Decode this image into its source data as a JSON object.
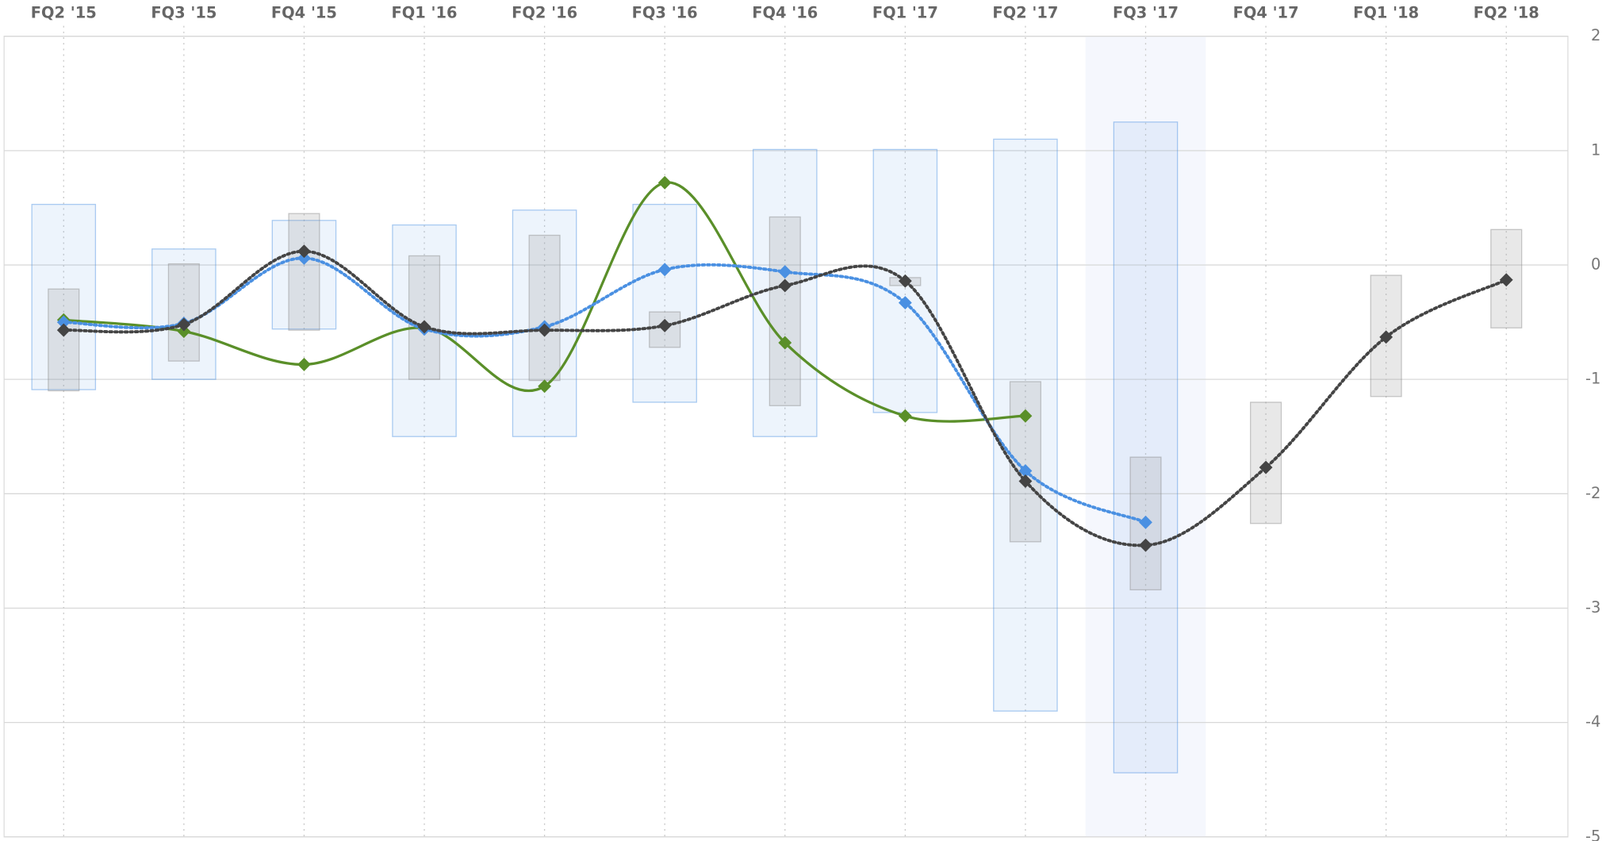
{
  "chart_data": {
    "type": "line",
    "categories": [
      "FQ2 '15",
      "FQ3 '15",
      "FQ4 '15",
      "FQ1 '16",
      "FQ2 '16",
      "FQ3 '16",
      "FQ4 '16",
      "FQ1 '17",
      "FQ2 '17",
      "FQ3 '17",
      "FQ4 '17",
      "FQ1 '18",
      "FQ2 '18"
    ],
    "ylim": [
      -5,
      2
    ],
    "yticks": [
      2,
      1,
      0,
      -1,
      -2,
      -3,
      -4,
      -5
    ],
    "grid": true,
    "highlight_category": 9,
    "ranges": [
      {
        "color": "#4a90e2",
        "high": [
          0.53,
          0.14,
          0.39,
          0.35,
          0.48,
          0.53,
          1.01,
          1.01,
          1.1,
          1.25,
          null,
          null,
          null
        ],
        "low": [
          -1.09,
          -1.0,
          -0.56,
          -1.5,
          -1.5,
          -1.2,
          -1.5,
          -1.29,
          -3.9,
          -4.44,
          null,
          null,
          null
        ]
      },
      {
        "color": "#8a8a8a",
        "high": [
          -0.21,
          0.01,
          0.45,
          0.08,
          0.26,
          -0.41,
          0.42,
          -0.11,
          -1.02,
          -1.68,
          -1.2,
          -0.09,
          0.31
        ],
        "low": [
          -1.1,
          -0.84,
          -0.57,
          -1.0,
          -1.01,
          -0.72,
          -1.23,
          -0.18,
          -2.42,
          -2.84,
          -2.26,
          -1.15,
          -0.55
        ]
      }
    ],
    "series": [
      {
        "color": "#5a8f29",
        "dash": false,
        "values": [
          -0.48,
          -0.58,
          -0.87,
          -0.55,
          -1.06,
          0.72,
          -0.68,
          -1.32,
          -1.32,
          null,
          null,
          null,
          null
        ]
      },
      {
        "color": "#4a90e2",
        "dash": true,
        "values": [
          -0.5,
          -0.51,
          0.06,
          -0.56,
          -0.54,
          -0.04,
          -0.06,
          -0.33,
          -1.8,
          -2.25,
          null,
          null,
          null
        ]
      },
      {
        "color": "#444444",
        "dash": true,
        "values": [
          -0.57,
          -0.52,
          0.12,
          -0.54,
          -0.57,
          -0.53,
          -0.18,
          -0.14,
          -1.89,
          -2.45,
          -1.77,
          -0.63,
          -0.13
        ]
      }
    ]
  }
}
